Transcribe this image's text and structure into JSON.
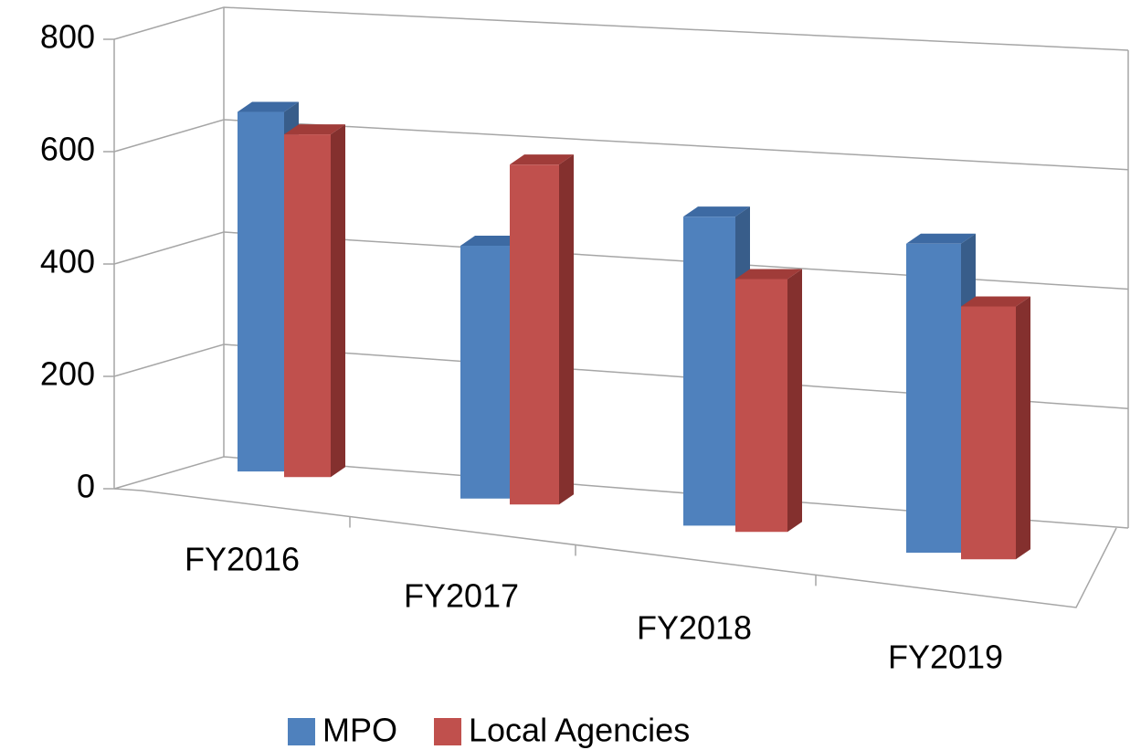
{
  "chart_data": {
    "type": "bar",
    "categories": [
      "FY2016",
      "FY2017",
      "FY2018",
      "FY2019"
    ],
    "series": [
      {
        "name": "MPO",
        "color": "#4f81bd",
        "side": "#385d8a",
        "top": "#3d6aa3",
        "values": [
          640,
          450,
          550,
          550
        ]
      },
      {
        "name": "Local Agencies",
        "color": "#c0504d",
        "side": "#84302e",
        "top": "#a03c39",
        "values": [
          610,
          605,
          450,
          450
        ]
      }
    ],
    "ylim": [
      0,
      800
    ],
    "yticks": [
      0,
      200,
      400,
      600,
      800
    ],
    "grid": true,
    "legend": "bottom"
  }
}
